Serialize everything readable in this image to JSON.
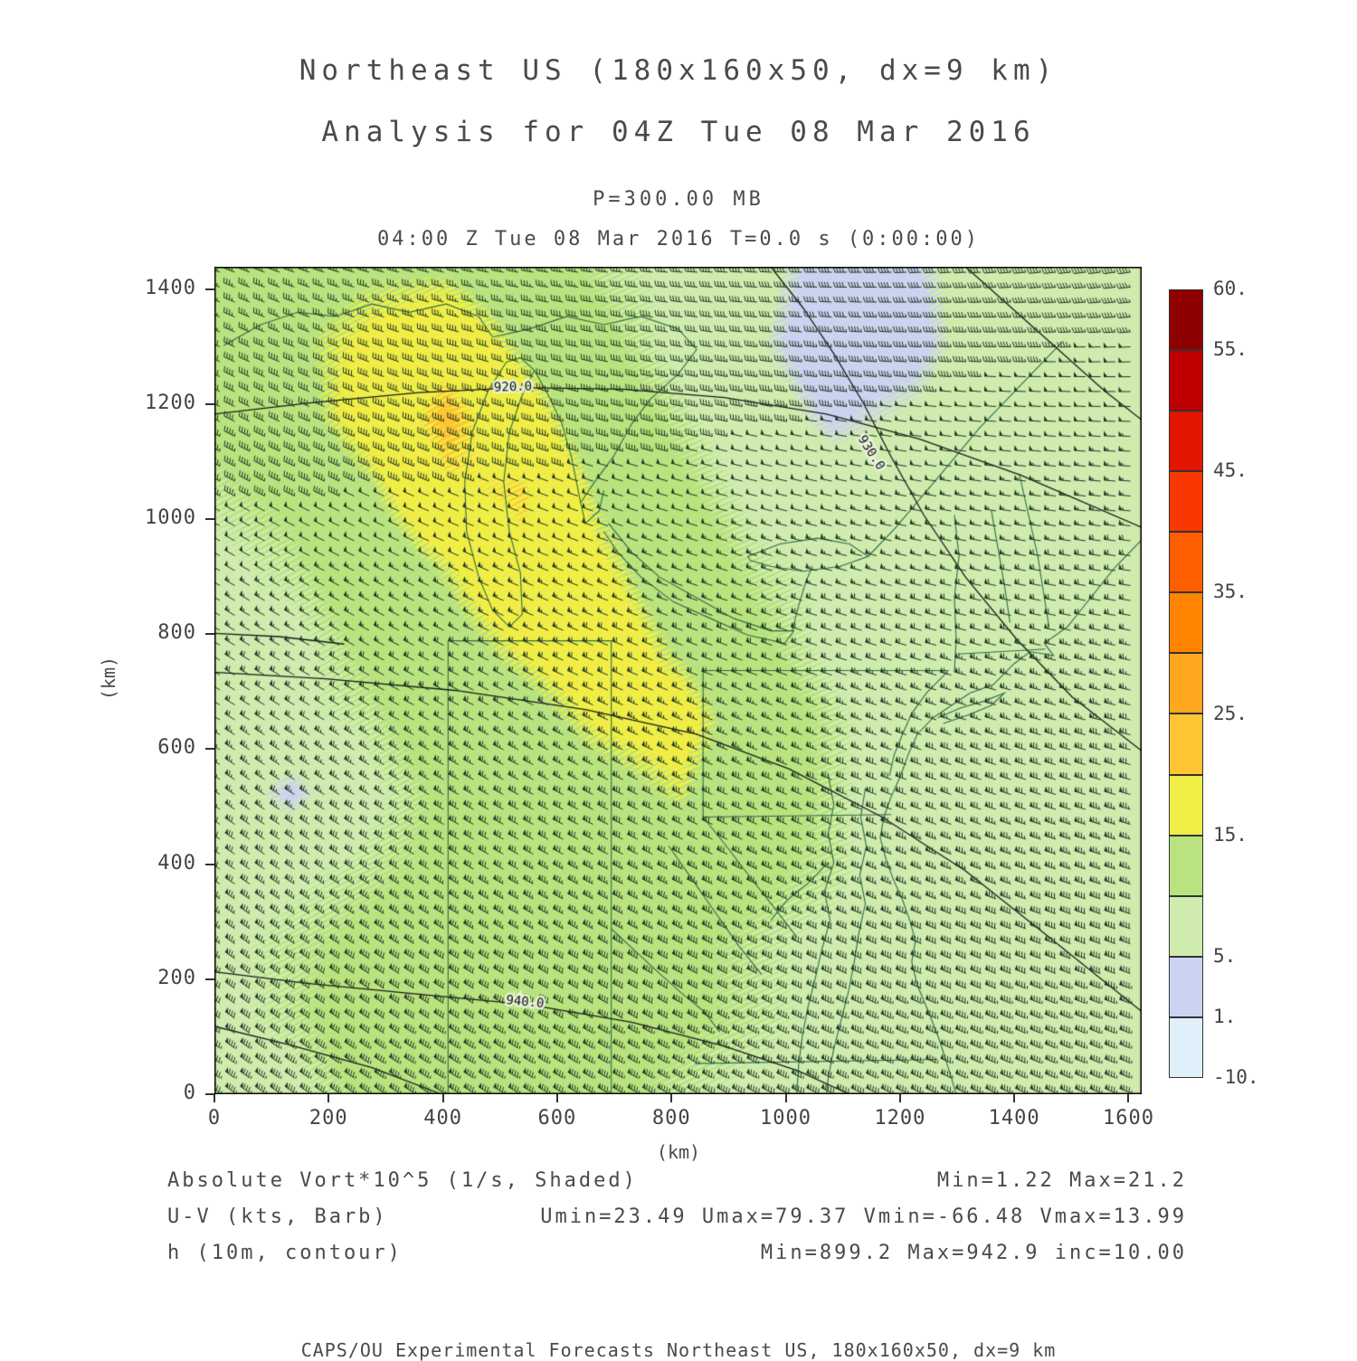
{
  "header": {
    "title_line1": "Northeast US (180x160x50, dx=9 km)",
    "title_line2": "Analysis for 04Z Tue 08 Mar 2016",
    "pressure_line": "P=300.00 MB",
    "time_line": "04:00 Z Tue 08 Mar 2016   T=0.0 s (0:00:00)"
  },
  "axes": {
    "x_label": "(km)",
    "y_label": "(km)",
    "x_ticks": [
      0,
      200,
      400,
      600,
      800,
      1000,
      1200,
      1400,
      1600
    ],
    "y_ticks": [
      0,
      200,
      400,
      600,
      800,
      1000,
      1200,
      1400
    ],
    "x_range_km": [
      0,
      1623
    ],
    "y_range_km": [
      0,
      1439
    ]
  },
  "colorbar": {
    "levels": [
      -10,
      1,
      5,
      10,
      15,
      20,
      25,
      30,
      35,
      40,
      45,
      50,
      55,
      60
    ],
    "colors_bottom_to_top": [
      "#dff0fa",
      "#ccd3f1",
      "#cfecae",
      "#b9e37e",
      "#f0ee46",
      "#ffc433",
      "#ffa81f",
      "#ff8400",
      "#ff5e00",
      "#f93800",
      "#e31400",
      "#bf0000",
      "#8f0000"
    ],
    "labels": [
      {
        "value": 60,
        "text": "60."
      },
      {
        "value": 55,
        "text": "55."
      },
      {
        "value": 45,
        "text": "45."
      },
      {
        "value": 35,
        "text": "35."
      },
      {
        "value": 25,
        "text": "25."
      },
      {
        "value": 15,
        "text": "15."
      },
      {
        "value": 5,
        "text": "5."
      },
      {
        "value": 1,
        "text": "1."
      },
      {
        "value": -10,
        "text": "-10."
      }
    ]
  },
  "legend": {
    "rows": [
      {
        "left": "Absolute Vort*10^5 (1/s, Shaded)",
        "right": "Min=1.22 Max=21.2"
      },
      {
        "left": "U-V (kts, Barb)",
        "right": "Umin=23.49 Umax=79.37 Vmin=-66.48 Vmax=13.99"
      },
      {
        "left": "h (10m, contour)",
        "right": "Min=899.2 Max=942.9 inc=10.00"
      }
    ]
  },
  "footer": "CAPS/OU Experimental Forecasts  Northeast US, 180x160x50, dx=9 km",
  "chart_data": {
    "type": "heatmap",
    "title": "Northeast US (180x160x50, dx=9 km)",
    "subtitle": "Analysis for 04Z Tue 08 Mar 2016",
    "pressure_level_mb": 300.0,
    "valid_time": "04:00 Z Tue 08 Mar 2016",
    "t_offset": "T=0.0 s (0:00:00)",
    "xlabel": "(km)",
    "ylabel": "(km)",
    "xlim": [
      0,
      1623
    ],
    "ylim": [
      0,
      1439
    ],
    "shaded_field": {
      "name": "Absolute Vort*10^5 (1/s, Shaded)",
      "min": 1.22,
      "max": 21.2,
      "grid_note": "estimated values on uniform 13x12 grid, rows top(1439km) to bottom(0km)",
      "grid_rows_top_to_bottom": [
        [
          12,
          13,
          14,
          14,
          12,
          10,
          9,
          7,
          3,
          4,
          8,
          8,
          7
        ],
        [
          12,
          14,
          16,
          18,
          14,
          11,
          9,
          6,
          2,
          3,
          8,
          8,
          7
        ],
        [
          11,
          13,
          17,
          21,
          17,
          12,
          10,
          8,
          4,
          6,
          8,
          8,
          7
        ],
        [
          10,
          11,
          14,
          19,
          20,
          14,
          11,
          9,
          8,
          8,
          8,
          7,
          7
        ],
        [
          9,
          10,
          12,
          15,
          19,
          16,
          12,
          10,
          9,
          8,
          7,
          7,
          7
        ],
        [
          9,
          9,
          11,
          13,
          16,
          18,
          14,
          11,
          9,
          8,
          7,
          7,
          7
        ],
        [
          8,
          9,
          10,
          12,
          13,
          16,
          17,
          12,
          10,
          8,
          7,
          7,
          7
        ],
        [
          8,
          4,
          9,
          11,
          12,
          13,
          15,
          12,
          10,
          8,
          7,
          7,
          7
        ],
        [
          9,
          9,
          10,
          11,
          12,
          12,
          12,
          11,
          10,
          8,
          7,
          7,
          7
        ],
        [
          9,
          10,
          11,
          12,
          13,
          12,
          11,
          10,
          9,
          8,
          8,
          7,
          7
        ],
        [
          9,
          10,
          12,
          13,
          13,
          12,
          11,
          10,
          9,
          8,
          8,
          8,
          7
        ],
        [
          8,
          9,
          11,
          12,
          12,
          11,
          10,
          9,
          9,
          8,
          8,
          8,
          7
        ]
      ]
    },
    "wind_barbs": {
      "name": "U-V (kts, Barb)",
      "units": "kts",
      "umin": 23.49,
      "umax": 79.37,
      "vmin": -66.48,
      "vmax": 13.99,
      "u_grid": [
        [
          30,
          31,
          32,
          34,
          35,
          36,
          37,
          38,
          40,
          41,
          42,
          43,
          44
        ],
        [
          34,
          35,
          36,
          37,
          38,
          40,
          41,
          42,
          43,
          44,
          46,
          47,
          48
        ],
        [
          37,
          38,
          40,
          41,
          42,
          43,
          44,
          46,
          47,
          48,
          49,
          50,
          52
        ],
        [
          41,
          42,
          43,
          44,
          46,
          47,
          48,
          49,
          50,
          52,
          53,
          54,
          55
        ],
        [
          44,
          46,
          47,
          48,
          49,
          50,
          52,
          53,
          54,
          55,
          56,
          58,
          59
        ],
        [
          48,
          49,
          50,
          52,
          53,
          54,
          55,
          56,
          58,
          59,
          60,
          61,
          62
        ],
        [
          52,
          53,
          54,
          55,
          56,
          58,
          59,
          60,
          61,
          62,
          64,
          65,
          66
        ],
        [
          55,
          56,
          58,
          59,
          60,
          61,
          62,
          64,
          65,
          66,
          67,
          68,
          70
        ],
        [
          59,
          60,
          61,
          62,
          64,
          65,
          66,
          67,
          68,
          70,
          71,
          72,
          73
        ],
        [
          62,
          64,
          65,
          66,
          67,
          68,
          70,
          71,
          72,
          73,
          74,
          76,
          77
        ],
        [
          66,
          67,
          68,
          70,
          71,
          72,
          73,
          74,
          76,
          77,
          78,
          79,
          79
        ],
        [
          70,
          71,
          72,
          73,
          74,
          76,
          77,
          78,
          79,
          79,
          79,
          79,
          79
        ]
      ],
      "v_grid": [
        [
          -12,
          -11,
          -9,
          -8,
          -6,
          -5,
          -3,
          -2,
          0,
          2,
          3,
          5,
          6
        ],
        [
          -16,
          -14,
          -13,
          -11,
          -10,
          -8,
          -7,
          -5,
          -4,
          -2,
          -1,
          1,
          3
        ],
        [
          -19,
          -18,
          -16,
          -15,
          -13,
          -12,
          -10,
          -9,
          -7,
          -6,
          -4,
          -3,
          -1
        ],
        [
          -23,
          -21,
          -20,
          -18,
          -17,
          -15,
          -14,
          -12,
          -11,
          -9,
          -8,
          -6,
          -5
        ],
        [
          -26,
          -25,
          -23,
          -22,
          -20,
          -19,
          -17,
          -16,
          -14,
          -13,
          -11,
          -10,
          -8
        ],
        [
          -30,
          -28,
          -27,
          -25,
          -24,
          -22,
          -21,
          -19,
          -18,
          -16,
          -15,
          -13,
          -12
        ],
        [
          -33,
          -32,
          -30,
          -29,
          -27,
          -26,
          -24,
          -23,
          -21,
          -20,
          -18,
          -17,
          -15
        ],
        [
          -37,
          -35,
          -34,
          -32,
          -31,
          -29,
          -28,
          -26,
          -25,
          -23,
          -22,
          -20,
          -19
        ],
        [
          -40,
          -39,
          -37,
          -36,
          -34,
          -33,
          -31,
          -30,
          -28,
          -27,
          -25,
          -24,
          -22
        ],
        [
          -44,
          -42,
          -41,
          -39,
          -38,
          -36,
          -35,
          -33,
          -32,
          -30,
          -29,
          -27,
          -26
        ],
        [
          -47,
          -46,
          -44,
          -43,
          -41,
          -40,
          -38,
          -37,
          -35,
          -34,
          -32,
          -31,
          -29
        ],
        [
          -51,
          -49,
          -48,
          -46,
          -45,
          -43,
          -42,
          -40,
          -39,
          -37,
          -36,
          -34,
          -33
        ]
      ]
    },
    "contours": {
      "name": "h (10m, contour)",
      "min": 899.2,
      "max": 942.9,
      "interval": 10.0,
      "labels": [
        "920.0",
        "930.0",
        "940.0"
      ]
    }
  }
}
